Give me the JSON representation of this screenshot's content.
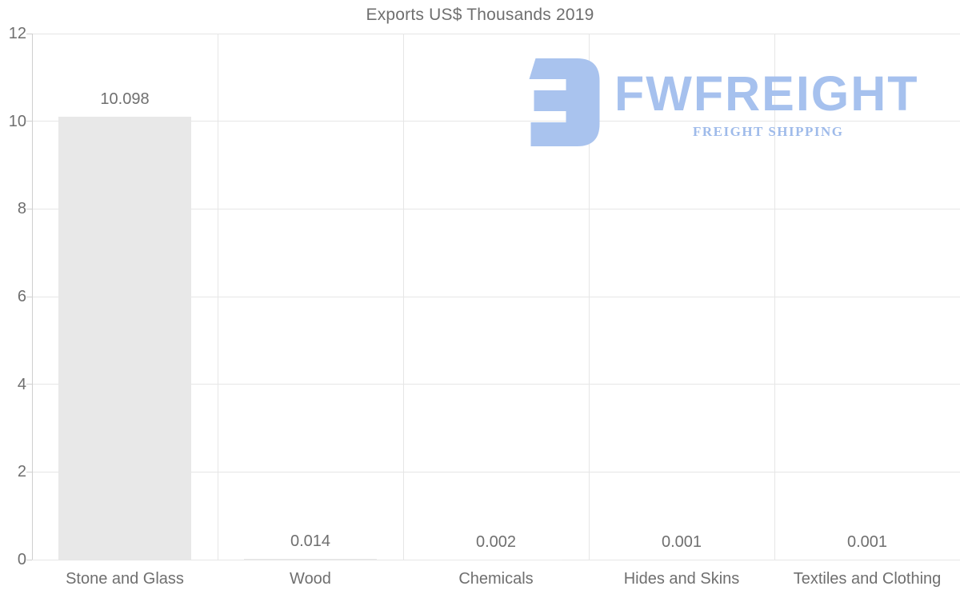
{
  "chart_data": {
    "type": "bar",
    "title": "Exports US$ Thousands 2019",
    "categories": [
      "Stone and Glass",
      "Wood",
      "Chemicals",
      "Hides and Skins",
      "Textiles and Clothing"
    ],
    "values": [
      10.098,
      0.014,
      0.002,
      0.001,
      0.001
    ],
    "value_labels": [
      "10.098",
      "0.014",
      "0.002",
      "0.001",
      "0.001"
    ],
    "xlabel": "",
    "ylabel": "",
    "ylim": [
      0,
      12
    ],
    "yticks": [
      0,
      2,
      4,
      6,
      8,
      10,
      12
    ],
    "grid": true,
    "legend": "none",
    "bar_color": "#e8e8e8",
    "grid_color": "#e6e6e6",
    "axis_color": "#cfcfcf",
    "text_color": "#6f6f6f",
    "background_color": "#ffffff"
  },
  "watermark": {
    "brand": "FWFREIGHT",
    "tagline": "FREIGHT SHIPPING",
    "brand_color": "#a6c1ee",
    "tagline_color": "#9fbbea",
    "icon_color": "#a9c3ee"
  }
}
